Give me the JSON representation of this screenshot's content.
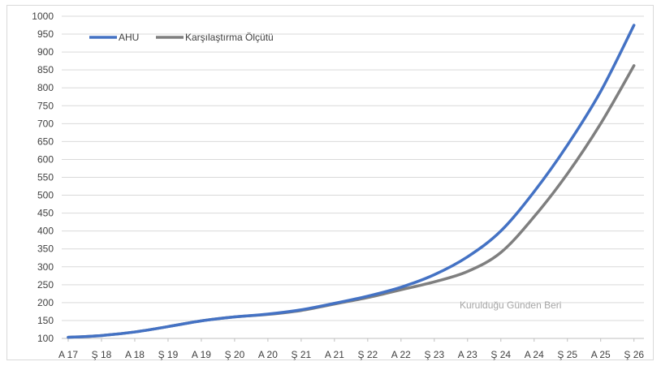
{
  "chart_data": {
    "type": "line",
    "title": "",
    "xlabel": "",
    "ylabel": "",
    "ylim": [
      100,
      1000
    ],
    "yticks": [
      100,
      150,
      200,
      250,
      300,
      350,
      400,
      450,
      500,
      550,
      600,
      650,
      700,
      750,
      800,
      850,
      900,
      950,
      1000
    ],
    "x_tick_labels": [
      "A 17",
      "Ş 18",
      "A 18",
      "Ş 19",
      "A 19",
      "Ş 20",
      "A 20",
      "Ş 21",
      "A 21",
      "Ş 22",
      "A 22",
      "Ş 23",
      "A 23",
      "Ş 24",
      "A 24",
      "Ş 25",
      "A 25",
      "Ş 26"
    ],
    "grid": "horizontal",
    "legend_position": "top-left",
    "annotation": "Kurulduğu Günden Beri",
    "series": [
      {
        "name": "AHU",
        "color": "#4472c4",
        "values": [
          103,
          108,
          118,
          133,
          149,
          160,
          168,
          180,
          198,
          218,
          243,
          278,
          328,
          400,
          510,
          640,
          790,
          975
        ]
      },
      {
        "name": "Karşılaştırma Ölçütü",
        "color": "#7f7f7f",
        "values": [
          103,
          108,
          118,
          133,
          149,
          160,
          167,
          178,
          196,
          214,
          236,
          258,
          287,
          340,
          440,
          560,
          700,
          862
        ]
      }
    ]
  }
}
